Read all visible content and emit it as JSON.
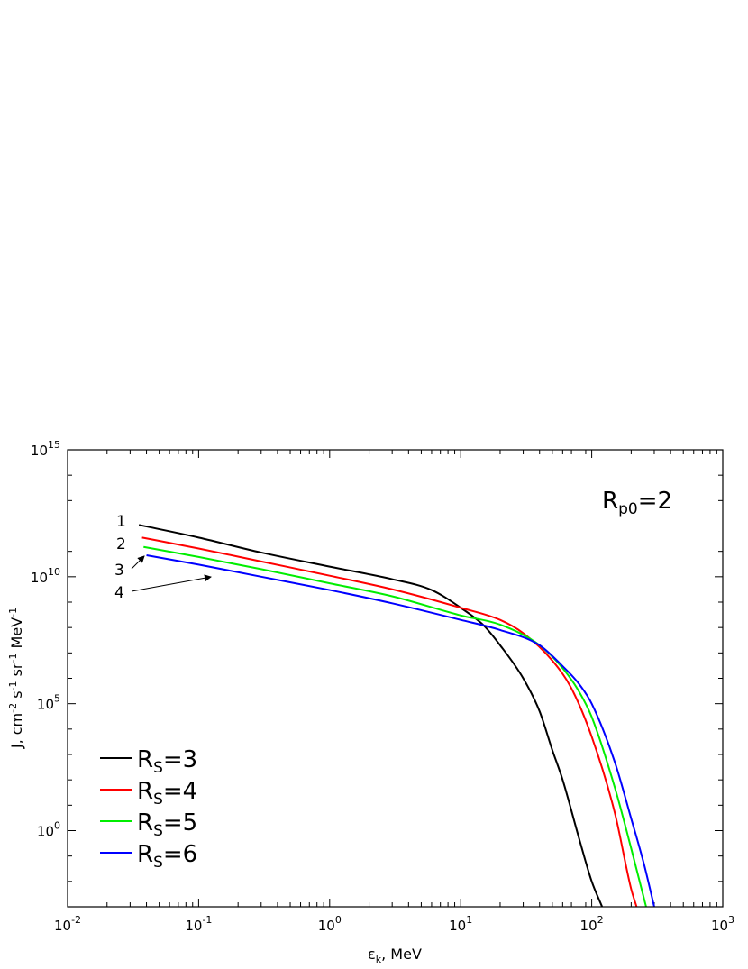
{
  "chart_data": {
    "type": "line",
    "xscale": "log",
    "yscale": "log",
    "xlim": [
      0.01,
      1000
    ],
    "ylim": [
      0.001,
      1000000000000000.0
    ],
    "xlabel": "ε",
    "xlabel_sub": "k",
    "xlabel_rest": ", MeV",
    "ylabel": "J, cm",
    "ylabel_parts": [
      "J, cm",
      "-2",
      " s",
      "-1",
      " sr",
      "-1",
      " MeV",
      "-1"
    ],
    "x_ticks": [
      {
        "value": 0.01,
        "base": "10",
        "exp": "-2"
      },
      {
        "value": 0.1,
        "base": "10",
        "exp": "-1"
      },
      {
        "value": 1,
        "base": "10",
        "exp": "0"
      },
      {
        "value": 10,
        "base": "10",
        "exp": "1"
      },
      {
        "value": 100,
        "base": "10",
        "exp": "2"
      },
      {
        "value": 1000,
        "base": "10",
        "exp": "3"
      }
    ],
    "y_ticks": [
      {
        "value": 1,
        "base": "10",
        "exp": "0"
      },
      {
        "value": 100000,
        "base": "10",
        "exp": "5"
      },
      {
        "value": 10000000000.0,
        "base": "10",
        "exp": "10"
      },
      {
        "value": 1000000000000000.0,
        "base": "10",
        "exp": "15"
      }
    ],
    "annotation": {
      "main": "R",
      "sub": "p0",
      "rest": "=2"
    },
    "legend_position": "lower-left",
    "series": [
      {
        "name": "R_S=3",
        "legend_main": "R",
        "legend_sub": "S",
        "legend_rest": "=3",
        "curve_label": "1",
        "color": "#000000",
        "x": [
          0.035,
          0.1,
          0.3,
          1,
          3,
          6,
          10,
          15,
          20,
          30,
          40,
          50,
          60,
          80,
          100,
          120
        ],
        "y": [
          1100000000000.0,
          350000000000.0,
          90000000000.0,
          25000000000.0,
          8000000000.0,
          3000000000.0,
          600000000.0,
          120000000.0,
          20000000.0,
          1000000.0,
          50000.0,
          1500,
          100,
          0.5,
          0.01,
          0.001
        ]
      },
      {
        "name": "R_S=4",
        "legend_main": "R",
        "legend_sub": "S",
        "legend_rest": "=4",
        "curve_label": "2",
        "color": "#ff0000",
        "x": [
          0.037,
          0.1,
          0.3,
          1,
          3,
          10,
          20,
          30,
          50,
          70,
          100,
          150,
          200,
          220
        ],
        "y": [
          350000000000.0,
          130000000000.0,
          40000000000.0,
          11000000000.0,
          3200000000.0,
          600000000.0,
          200000000.0,
          60000000.0,
          5000000.0,
          400000.0,
          5000,
          5,
          0.005,
          0.001
        ]
      },
      {
        "name": "R_S=5",
        "legend_main": "R",
        "legend_sub": "S",
        "legend_rest": "=5",
        "curve_label": "3",
        "color": "#00ee00",
        "x": [
          0.038,
          0.1,
          0.3,
          1,
          3,
          10,
          20,
          40,
          60,
          80,
          100,
          150,
          200,
          260
        ],
        "y": [
          150000000000.0,
          60000000000.0,
          20000000000.0,
          5500000000.0,
          1700000000.0,
          300000000.0,
          130000000.0,
          20000000.0,
          2500000.0,
          300000.0,
          30000.0,
          50,
          0.2,
          0.001
        ]
      },
      {
        "name": "R_S=6",
        "legend_main": "R",
        "legend_sub": "S",
        "legend_rest": "=6",
        "curve_label": "4",
        "color": "#0000ff",
        "x": [
          0.04,
          0.1,
          0.3,
          1,
          3,
          10,
          20,
          40,
          60,
          80,
          100,
          150,
          200,
          250,
          300
        ],
        "y": [
          70000000000.0,
          30000000000.0,
          10000000000.0,
          3000000000.0,
          900000000.0,
          200000000.0,
          80000000.0,
          20000000.0,
          3000000.0,
          600000.0,
          100000.0,
          500,
          3,
          0.05,
          0.001
        ]
      }
    ]
  }
}
